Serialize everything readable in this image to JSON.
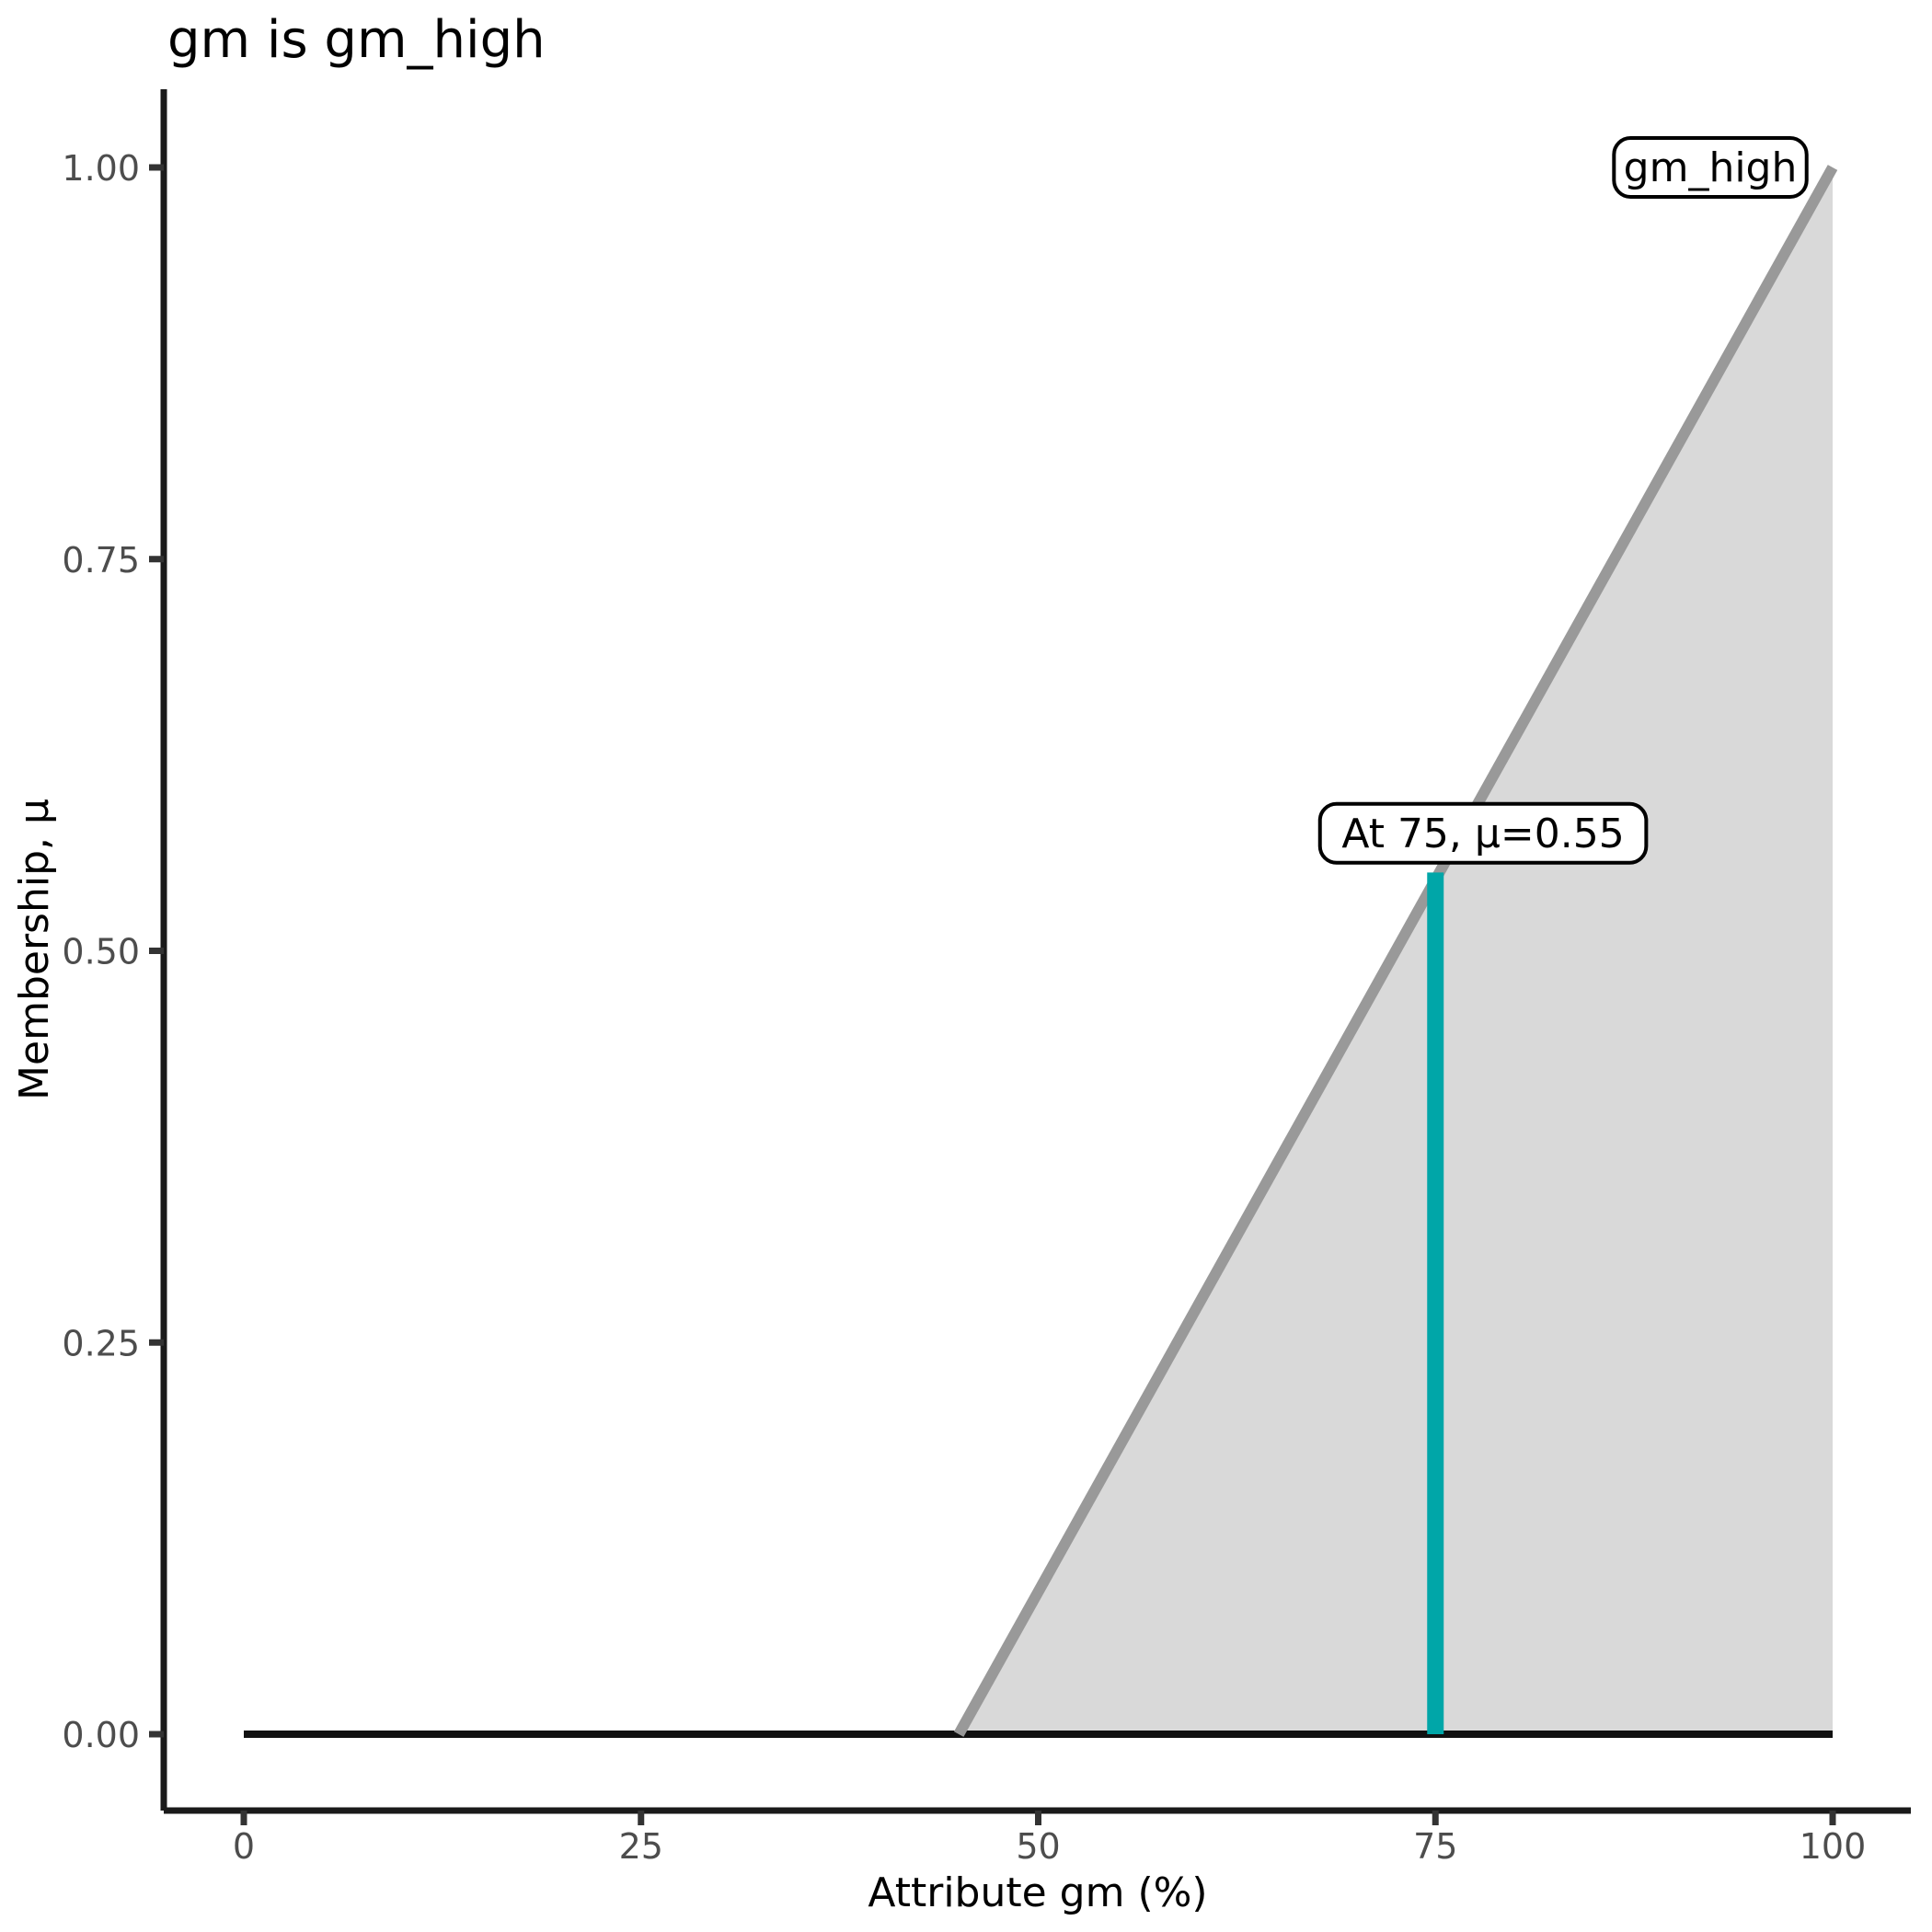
{
  "chart_data": {
    "type": "area",
    "title": "gm is gm_high",
    "xlabel": "Attribute gm (%)",
    "ylabel": "Membership, μ",
    "xlim": [
      0,
      100
    ],
    "ylim": [
      0,
      1
    ],
    "grid": "off",
    "legend": "none",
    "x_ticks": [
      {
        "label": "0",
        "value": 0
      },
      {
        "label": "25",
        "value": 25
      },
      {
        "label": "50",
        "value": 50
      },
      {
        "label": "75",
        "value": 75
      },
      {
        "label": "100",
        "value": 100
      }
    ],
    "y_ticks": [
      {
        "label": "0.00",
        "value": 0
      },
      {
        "label": "0.25",
        "value": 0.25
      },
      {
        "label": "0.50",
        "value": 0.5
      },
      {
        "label": "0.75",
        "value": 0.75
      },
      {
        "label": "1.00",
        "value": 1
      }
    ],
    "series": [
      {
        "name": "zero-baseline",
        "kind": "line",
        "color": "#111111",
        "width": 8,
        "points": [
          [
            0,
            0
          ],
          [
            100,
            0
          ]
        ]
      },
      {
        "name": "gm_high-membership",
        "kind": "area",
        "line_color": "#999999",
        "fill_color": "#d9d9d9",
        "width": 12,
        "baseline": 0,
        "points": [
          [
            45,
            0
          ],
          [
            100,
            1
          ]
        ]
      },
      {
        "name": "crisp-input-at-75",
        "kind": "segment",
        "color": "#00a6a8",
        "width": 18,
        "points": [
          [
            75,
            0
          ],
          [
            75,
            0.55
          ]
        ]
      }
    ],
    "annotations": [
      {
        "text": "At 75, μ=0.55",
        "x": 78,
        "y": 0.575,
        "boxed": true
      },
      {
        "text": "gm_high",
        "x": 92.3,
        "y": 1.0,
        "boxed": true
      }
    ]
  },
  "colors": {
    "axis_line": "#1a1a1a",
    "tick_mark": "#333333",
    "tick_label": "#4d4d4d",
    "membership_line": "#999999",
    "membership_fill": "#d9d9d9",
    "input_marker": "#00a6a8",
    "baseline": "#111111",
    "annotation_border": "#000000",
    "annotation_fill": "#ffffff",
    "background": "#ffffff"
  }
}
